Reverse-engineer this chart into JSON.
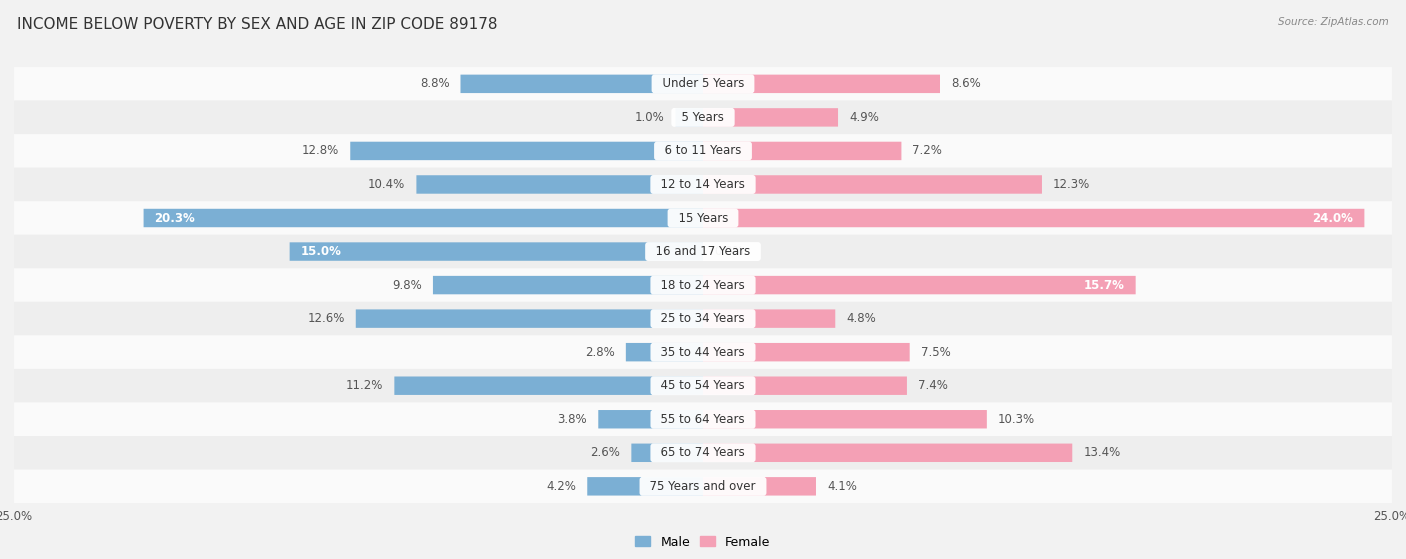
{
  "title": "INCOME BELOW POVERTY BY SEX AND AGE IN ZIP CODE 89178",
  "source": "Source: ZipAtlas.com",
  "categories": [
    "Under 5 Years",
    "5 Years",
    "6 to 11 Years",
    "12 to 14 Years",
    "15 Years",
    "16 and 17 Years",
    "18 to 24 Years",
    "25 to 34 Years",
    "35 to 44 Years",
    "45 to 54 Years",
    "55 to 64 Years",
    "65 to 74 Years",
    "75 Years and over"
  ],
  "male_values": [
    8.8,
    1.0,
    12.8,
    10.4,
    20.3,
    15.0,
    9.8,
    12.6,
    2.8,
    11.2,
    3.8,
    2.6,
    4.2
  ],
  "female_values": [
    8.6,
    4.9,
    7.2,
    12.3,
    24.0,
    0.0,
    15.7,
    4.8,
    7.5,
    7.4,
    10.3,
    13.4,
    4.1
  ],
  "male_color": "#7bafd4",
  "female_color": "#f4a0b5",
  "inside_threshold_male": 14.0,
  "inside_threshold_female": 14.0,
  "xlim": 25.0,
  "row_colors": [
    "#f5f5f5",
    "#e8e8e8"
  ],
  "title_fontsize": 11,
  "label_fontsize": 8.5,
  "category_fontsize": 8.5,
  "legend_fontsize": 9,
  "axis_label_fontsize": 8.5,
  "bar_height": 0.55
}
